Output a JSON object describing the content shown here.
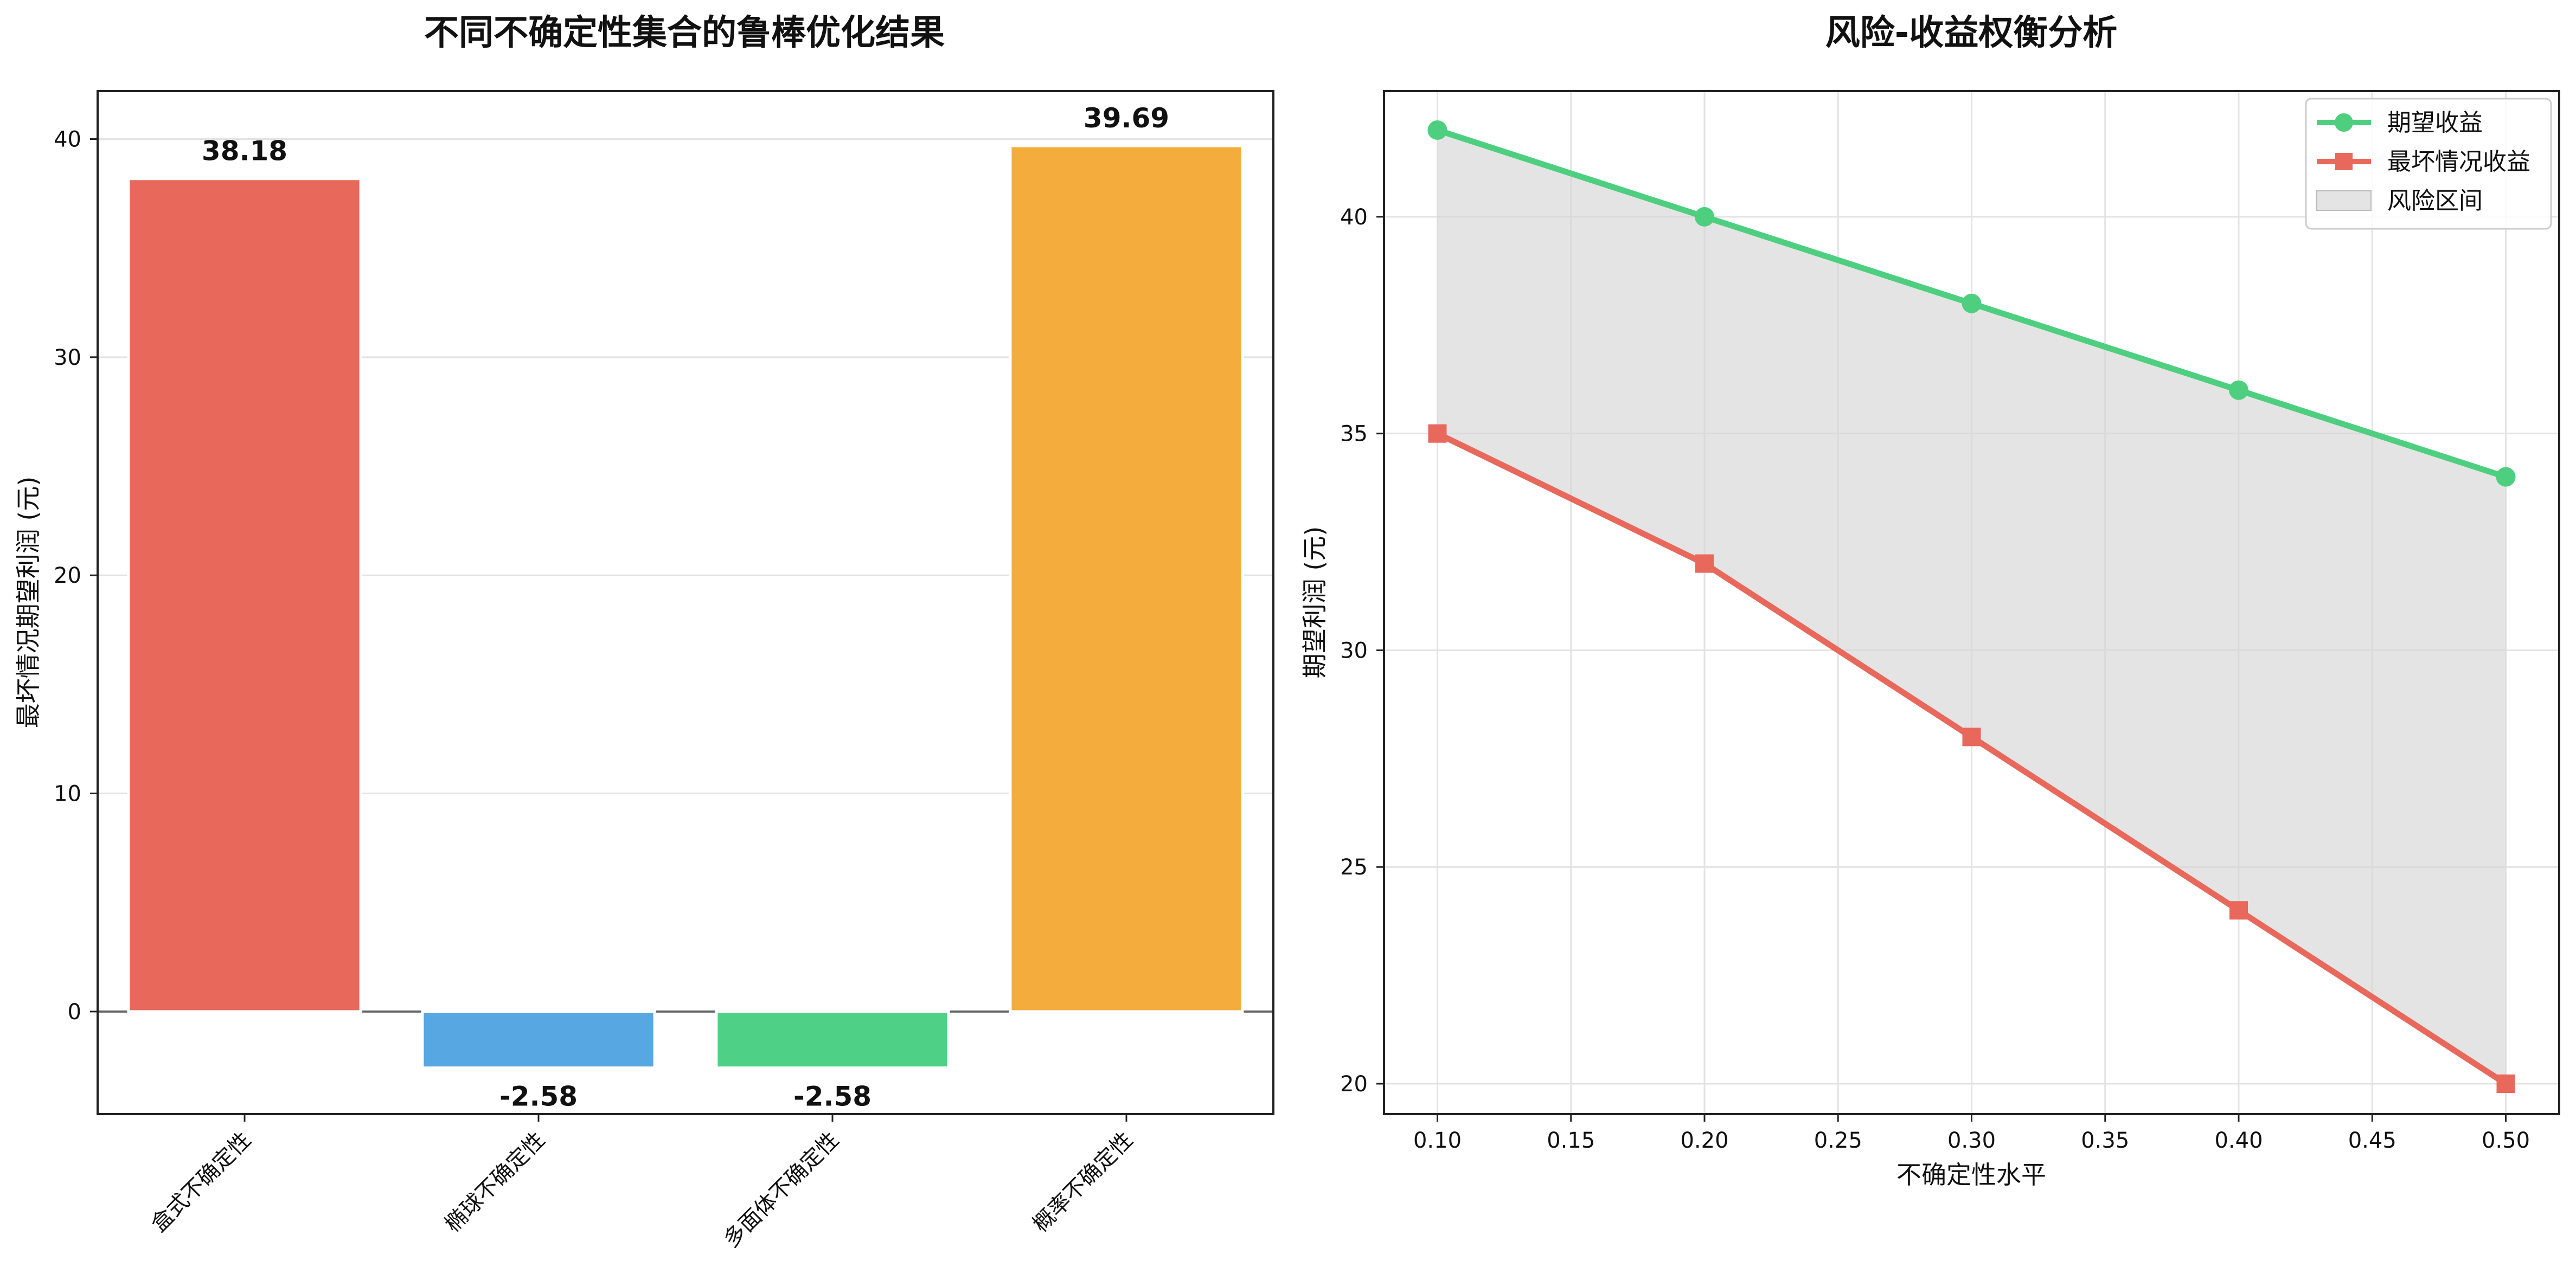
{
  "chart_data": [
    {
      "type": "bar",
      "title": "不同不确定性集合的鲁棒优化结果",
      "xlabel": "",
      "ylabel": "最坏情况期望利润 (元)",
      "categories": [
        "盒式不确定性",
        "椭球不确定性",
        "多面体不确定性",
        "概率不确定性"
      ],
      "values": [
        38.18,
        -2.58,
        -2.58,
        39.69
      ],
      "value_labels": [
        "38.18",
        "-2.58",
        "-2.58",
        "39.69"
      ],
      "colors": [
        "#e8685c",
        "#56a7e2",
        "#4ed187",
        "#f4ad3c"
      ],
      "ylim": [
        -4.7,
        42.2
      ],
      "yticks": [
        0,
        10,
        20,
        30,
        40
      ],
      "ytick_labels": [
        "0",
        "10",
        "20",
        "30",
        "40"
      ],
      "grid": true
    },
    {
      "type": "line",
      "title": "风险-收益权衡分析",
      "xlabel": "不确定性水平",
      "ylabel": "期望利润 (元)",
      "x": [
        0.1,
        0.2,
        0.3,
        0.4,
        0.5
      ],
      "series": [
        {
          "name": "期望收益",
          "values": [
            42,
            40,
            38,
            36,
            34
          ],
          "color": "#4ecf80",
          "marker": "circle"
        },
        {
          "name": "最坏情况收益",
          "values": [
            35,
            32,
            28,
            24,
            20
          ],
          "color": "#e8685c",
          "marker": "square"
        }
      ],
      "band": {
        "name": "风险区间",
        "color": "#d6d6d6"
      },
      "xlim": [
        0.08,
        0.52
      ],
      "ylim": [
        19.3,
        42.9
      ],
      "xticks": [
        0.1,
        0.15,
        0.2,
        0.25,
        0.3,
        0.35,
        0.4,
        0.45,
        0.5
      ],
      "xtick_labels": [
        "0.10",
        "0.15",
        "0.20",
        "0.25",
        "0.30",
        "0.35",
        "0.40",
        "0.45",
        "0.50"
      ],
      "yticks": [
        20,
        25,
        30,
        35,
        40
      ],
      "ytick_labels": [
        "20",
        "25",
        "30",
        "35",
        "40"
      ],
      "legend_position": "top-right",
      "grid": true
    }
  ]
}
